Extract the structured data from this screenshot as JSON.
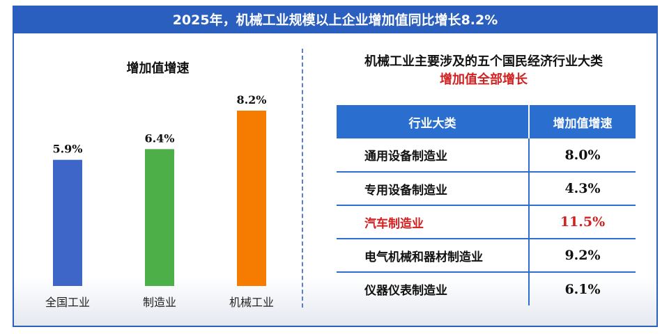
{
  "banner": {
    "title": "2025年，机械工业规模以上企业增加值同比增长8.2%"
  },
  "chart_data": {
    "type": "bar",
    "title": "增加值增速",
    "categories": [
      "全国工业",
      "制造业",
      "机械工业"
    ],
    "values": [
      5.9,
      6.4,
      8.2
    ],
    "value_labels": [
      "5.9%",
      "6.4%",
      "8.2%"
    ],
    "colors": [
      "#3d66c8",
      "#4caf48",
      "#f57c00"
    ],
    "ylim": [
      0,
      8.2
    ],
    "grid": false,
    "xlabel": "",
    "ylabel": ""
  },
  "right_panel": {
    "title": "机械工业主要涉及的五个国民经济行业大类",
    "subtitle": "增加值全部增长",
    "table": {
      "headers": [
        "行业大类",
        "增加值增速"
      ],
      "rows": [
        {
          "category": "通用设备制造业",
          "value": "8.0%"
        },
        {
          "category": "专用设备制造业",
          "value": "4.3%"
        },
        {
          "category": "汽车制造业",
          "value": "11.5%"
        },
        {
          "category": "电气机械和器材制造业",
          "value": "9.2%"
        },
        {
          "category": "仪器仪表制造业",
          "value": "6.1%"
        }
      ]
    }
  },
  "colors": {
    "accent": "#2a5fbf",
    "header": "#2a6fd0",
    "highlight": "#d21f1f"
  }
}
